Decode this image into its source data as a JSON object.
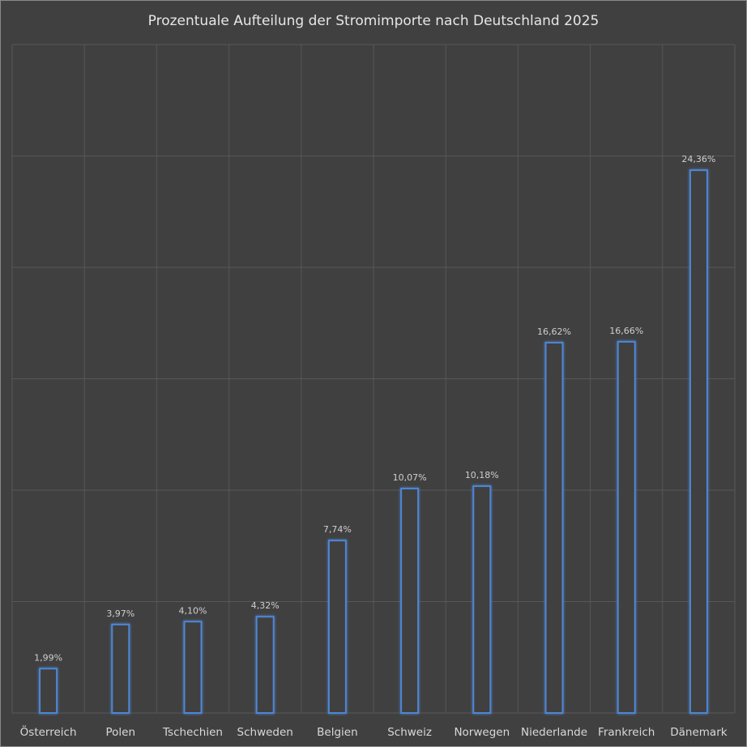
{
  "chart_data": {
    "type": "bar",
    "title": "Prozentuale Aufteilung der Stromimporte nach Deutschland 2025",
    "categories": [
      "Österreich",
      "Polen",
      "Tschechien",
      "Schweden",
      "Belgien",
      "Schweiz",
      "Norwegen",
      "Niederlande",
      "Frankreich",
      "Dänemark"
    ],
    "values": [
      1.99,
      3.97,
      4.1,
      4.32,
      7.74,
      10.07,
      10.18,
      16.62,
      16.66,
      24.36
    ],
    "data_labels": [
      "1,99%",
      "3,97%",
      "4,10%",
      "4,32%",
      "7,74%",
      "10,07%",
      "10,18%",
      "16,62%",
      "16,66%",
      "24,36%"
    ],
    "xlabel": "",
    "ylabel": "",
    "ylim": [
      0,
      30
    ],
    "ytick_step": 5,
    "grid": true,
    "legend": "none",
    "colors": {
      "background": "#404040",
      "bar_outline": "#4f86d4",
      "grid": "#575757"
    }
  }
}
